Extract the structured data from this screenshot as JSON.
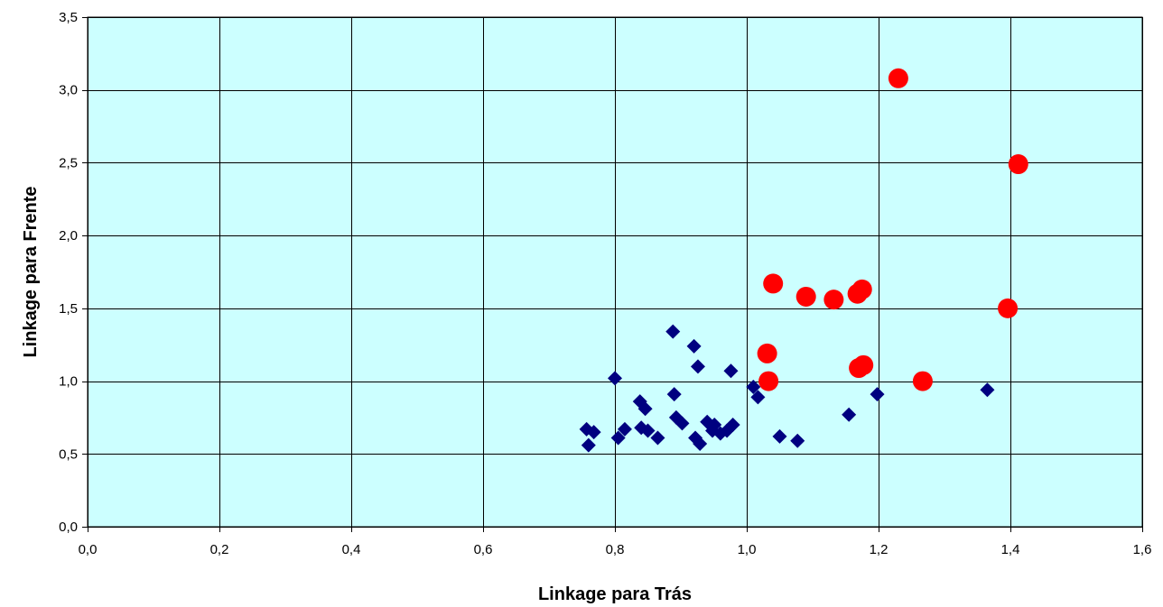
{
  "chart_data": {
    "type": "scatter",
    "title": "",
    "xlabel": "Linkage para Trás",
    "ylabel": "Linkage para Frente",
    "xlim": [
      0.0,
      1.6
    ],
    "ylim": [
      0.0,
      3.5
    ],
    "x_ticks": [
      "0,0",
      "0,2",
      "0,4",
      "0,6",
      "0,8",
      "1,0",
      "1,2",
      "1,4",
      "1,6"
    ],
    "y_ticks": [
      "0,0",
      "0,5",
      "1,0",
      "1,5",
      "2,0",
      "2,5",
      "3,0",
      "3,5"
    ],
    "grid": true,
    "plot_background": "#CCFFFF",
    "series": [
      {
        "marker": "diamond",
        "color": "#000080",
        "points": [
          [
            0.757,
            0.67
          ],
          [
            0.76,
            0.56
          ],
          [
            0.768,
            0.65
          ],
          [
            0.8,
            1.02
          ],
          [
            0.805,
            0.61
          ],
          [
            0.815,
            0.67
          ],
          [
            0.838,
            0.86
          ],
          [
            0.84,
            0.68
          ],
          [
            0.846,
            0.81
          ],
          [
            0.85,
            0.66
          ],
          [
            0.865,
            0.61
          ],
          [
            0.888,
            1.34
          ],
          [
            0.89,
            0.91
          ],
          [
            0.893,
            0.75
          ],
          [
            0.902,
            0.71
          ],
          [
            0.92,
            1.24
          ],
          [
            0.922,
            0.61
          ],
          [
            0.926,
            1.1
          ],
          [
            0.929,
            0.57
          ],
          [
            0.94,
            0.72
          ],
          [
            0.948,
            0.66
          ],
          [
            0.951,
            0.7
          ],
          [
            0.96,
            0.64
          ],
          [
            0.97,
            0.66
          ],
          [
            0.976,
            1.07
          ],
          [
            0.979,
            0.7
          ],
          [
            1.01,
            0.96
          ],
          [
            1.017,
            0.89
          ],
          [
            1.05,
            0.62
          ],
          [
            1.077,
            0.59
          ],
          [
            1.155,
            0.77
          ],
          [
            1.198,
            0.91
          ],
          [
            1.365,
            0.94
          ]
        ]
      },
      {
        "marker": "circle",
        "color": "#FF0000",
        "points": [
          [
            1.031,
            1.19
          ],
          [
            1.033,
            1.0
          ],
          [
            1.04,
            1.67
          ],
          [
            1.09,
            1.58
          ],
          [
            1.132,
            1.56
          ],
          [
            1.168,
            1.6
          ],
          [
            1.17,
            1.09
          ],
          [
            1.175,
            1.63
          ],
          [
            1.177,
            1.11
          ],
          [
            1.23,
            3.08
          ],
          [
            1.267,
            1.0
          ],
          [
            1.396,
            1.5
          ],
          [
            1.412,
            2.49
          ]
        ]
      }
    ]
  }
}
